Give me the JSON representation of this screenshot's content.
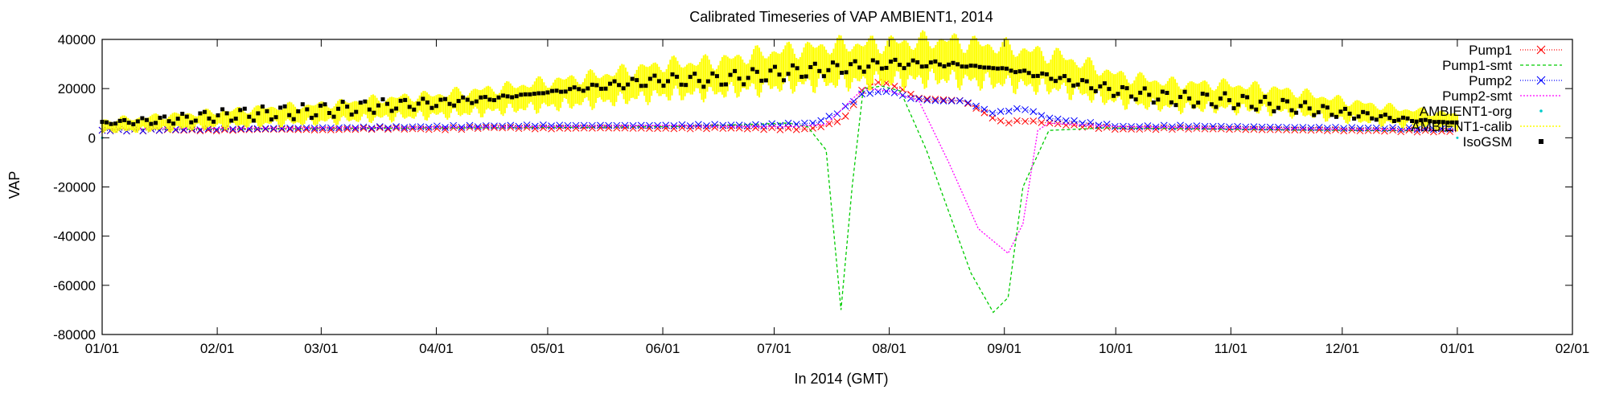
{
  "chart_data": {
    "type": "line",
    "title": "Calibrated Timeseries of VAP AMBIENT1, 2014",
    "xlabel": "In 2014 (GMT)",
    "ylabel": "VAP",
    "ylim": [
      -80000,
      40000
    ],
    "yticks": [
      40000,
      20000,
      0,
      -20000,
      -40000,
      -60000,
      -80000
    ],
    "ytick_labels": [
      "40000",
      "20000",
      "0",
      "-20000",
      "-40000",
      "-60000",
      "-80000"
    ],
    "xticks": [
      0,
      31,
      59,
      90,
      120,
      151,
      181,
      212,
      243,
      273,
      304,
      334,
      365,
      396
    ],
    "xtick_labels": [
      "01/01",
      "02/01",
      "03/01",
      "04/01",
      "05/01",
      "06/01",
      "07/01",
      "08/01",
      "09/01",
      "10/01",
      "11/01",
      "12/01",
      "01/01",
      "02/01"
    ],
    "grid": false,
    "legend_position": "top-right",
    "series": [
      {
        "name": "Pump1",
        "style": "points-line",
        "color": "#ff0000",
        "marker": "x",
        "x": [
          0,
          15,
          30,
          45,
          60,
          75,
          90,
          105,
          120,
          135,
          151,
          165,
          175,
          190,
          195,
          200,
          205,
          210,
          215,
          220,
          232,
          240,
          243,
          248,
          255,
          265,
          275,
          290,
          305,
          320,
          335,
          350,
          365
        ],
        "y": [
          3000,
          3200,
          3000,
          3500,
          3200,
          3800,
          3500,
          4200,
          3800,
          4000,
          3800,
          4000,
          3800,
          3500,
          5000,
          8000,
          20000,
          23000,
          20000,
          16000,
          15000,
          8000,
          6000,
          7000,
          6000,
          4500,
          3500,
          3800,
          3500,
          3200,
          3000,
          2800,
          2500
        ]
      },
      {
        "name": "Pump1-smt",
        "style": "dashed-line",
        "color": "#00cc00",
        "x": [
          0,
          30,
          60,
          90,
          120,
          151,
          165,
          175,
          185,
          190,
          195,
          199,
          202,
          205,
          210,
          215,
          222,
          228,
          234,
          240,
          244,
          248,
          255,
          270,
          285,
          300,
          320,
          340,
          365
        ],
        "y": [
          3500,
          3500,
          3800,
          4000,
          4200,
          4500,
          5000,
          5500,
          6000,
          4500,
          -5000,
          -70000,
          -20000,
          20000,
          21000,
          19000,
          -5000,
          -30000,
          -55000,
          -71000,
          -65000,
          -20000,
          3000,
          4000,
          3800,
          3500,
          3200,
          3000,
          2800
        ]
      },
      {
        "name": "Pump2",
        "style": "points-line",
        "color": "#0000ff",
        "marker": "x",
        "x": [
          0,
          15,
          30,
          45,
          60,
          75,
          90,
          105,
          120,
          135,
          151,
          165,
          175,
          192,
          198,
          205,
          212,
          218,
          225,
          232,
          240,
          244,
          248,
          255,
          265,
          275,
          290,
          305,
          320,
          335,
          350,
          365
        ],
        "y": [
          3000,
          3300,
          3500,
          3800,
          4000,
          4200,
          4500,
          4800,
          5000,
          5000,
          5000,
          5200,
          5000,
          6000,
          10000,
          18000,
          19000,
          16000,
          15000,
          15000,
          10000,
          11000,
          12000,
          8000,
          6000,
          4500,
          4800,
          4500,
          4200,
          4000,
          3800,
          3500
        ]
      },
      {
        "name": "Pump2-smt",
        "style": "dotted-line",
        "color": "#ff00ff",
        "x": [
          0,
          30,
          60,
          90,
          120,
          140,
          151,
          170,
          185,
          195,
          205,
          212,
          220,
          228,
          236,
          244,
          248,
          252,
          255,
          260,
          275,
          300,
          330,
          365
        ],
        "y": [
          3500,
          3800,
          4000,
          4200,
          4500,
          4800,
          5000,
          4500,
          4500,
          5500,
          20000,
          19000,
          15000,
          -10000,
          -37000,
          -47000,
          -35000,
          3000,
          6000,
          5500,
          4500,
          4000,
          3500,
          3000
        ]
      },
      {
        "name": "AMBIENT1-org",
        "style": "points",
        "color": "#00cccc",
        "x": [
          0,
          365
        ],
        "y": [
          0,
          0
        ]
      },
      {
        "name": "AMBIENT1-calib",
        "style": "impulses",
        "color": "#ffff00",
        "x": [
          0,
          15,
          31,
          45,
          59,
          75,
          90,
          105,
          120,
          135,
          151,
          165,
          181,
          196,
          212,
          227,
          243,
          258,
          273,
          288,
          304,
          319,
          334,
          350,
          365
        ],
        "y": [
          5000,
          6500,
          8000,
          9500,
          10500,
          12500,
          14000,
          16000,
          18500,
          21000,
          24500,
          25500,
          29000,
          31000,
          32000,
          33000,
          30500,
          27500,
          21000,
          18000,
          17500,
          15500,
          12000,
          9000,
          7000
        ]
      },
      {
        "name": "IsoGSM",
        "style": "points",
        "color": "#000000",
        "marker": "square",
        "x": [
          0,
          15,
          31,
          45,
          59,
          75,
          90,
          105,
          120,
          135,
          151,
          165,
          181,
          196,
          212,
          227,
          243,
          258,
          273,
          288,
          304,
          319,
          334,
          350,
          365
        ],
        "y": [
          6000,
          7000,
          9000,
          10000,
          11000,
          13000,
          14000,
          16000,
          18500,
          21000,
          23500,
          23500,
          26000,
          28000,
          30000,
          30000,
          28000,
          24000,
          19000,
          16000,
          15000,
          13000,
          10000,
          7500,
          6000
        ]
      }
    ]
  }
}
